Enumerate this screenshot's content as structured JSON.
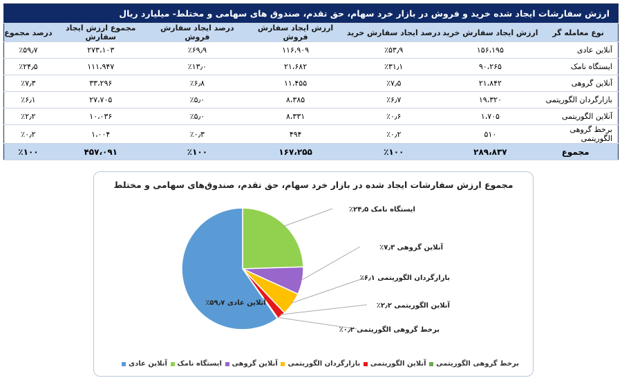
{
  "table": {
    "title": "ارزش سفارشات ایجاد شده خرید و فروش در بازار خرد سهام، حق تقدم، صندوق های سهامی و مختلط- میلیارد ریال",
    "headers": [
      "نوع معامله گر",
      "ارزش ایجاد سفارش خرید",
      "درصد ایجاد سفارش خرید",
      "ارزش ایجاد سفارش فروش",
      "درصد ایجاد سفارش فروش",
      "مجموع ارزش ایجاد سفارش",
      "درصد مجموع"
    ],
    "rows": [
      [
        "آنلاین عادی",
        "۱۵۶،۱۹۵",
        "٪۵۳٫۹",
        "۱۱۶،۹۰۹",
        "٪۶۹٫۹",
        "۲۷۳،۱۰۳",
        "٪۵۹٫۷"
      ],
      [
        "ایستگاه نامک",
        "۹۰،۲۶۵",
        "٪۳۱٫۱",
        "۲۱،۶۸۲",
        "٪۱۳٫۰",
        "۱۱۱،۹۴۷",
        "٪۲۴٫۵"
      ],
      [
        "آنلاین گروهی",
        "۲۱،۸۴۲",
        "٪۷٫۵",
        "۱۱،۴۵۵",
        "٪۶٫۸",
        "۳۳،۲۹۶",
        "٪۷٫۳"
      ],
      [
        "بازارگردان الگوریتمی",
        "۱۹،۳۲۰",
        "٪۶٫۷",
        "۸،۳۸۵",
        "٪۵٫۰",
        "۲۷،۷۰۵",
        "٪۶٫۱"
      ],
      [
        "آنلاین الگوریتمی",
        "۱،۷۰۵",
        "٪۰٫۶",
        "۸،۳۳۱",
        "٪۵٫۰",
        "۱۰،۰۳۶",
        "٪۲٫۲"
      ],
      [
        "برخط گروهی الگوریتمی",
        "۵۱۰",
        "٪۰٫۲",
        "۴۹۴",
        "٪۰٫۳",
        "۱،۰۰۴",
        "٪۰٫۲"
      ]
    ],
    "total": [
      "مجموع",
      "۲۸۹،۸۳۷",
      "٪۱۰۰",
      "۱۶۷،۲۵۵",
      "٪۱۰۰",
      "۴۵۷،۰۹۱",
      "٪۱۰۰"
    ]
  },
  "chart_data": {
    "type": "pie",
    "title": "مجموع ارزش سفارشات ایجاد شده در بازار خرد سهام، حق تقدم، صندوق‌های سهامی و مختلط",
    "slices": [
      {
        "name": "ایستگاه نامک",
        "value": 24.5,
        "label": "ایستگاه نامک ۲۴٫۵٪",
        "color": "#92d050"
      },
      {
        "name": "آنلاین گروهی",
        "value": 7.3,
        "label": "آنلاین گروهی ۷٫۳٪",
        "color": "#9966cc"
      },
      {
        "name": "بازارگردان الگوریتمی",
        "value": 6.1,
        "label": "بازارگردان الگوریتمی ۶٫۱٪",
        "color": "#ffc000"
      },
      {
        "name": "آنلاین الگوریتمی",
        "value": 2.2,
        "label": "آنلاین الگوریتمی ۲٫۲٪",
        "color": "#e31a1c"
      },
      {
        "name": "برخط گروهی الگوریتمی",
        "value": 0.2,
        "label": "برخط گروهی الگوریتمی ۰٫۲٪",
        "color": "#6aa84f"
      },
      {
        "name": "آنلاین عادی",
        "value": 59.7,
        "label": "آنلاین عادی ۵۹٫۷٪",
        "color": "#5b9bd5"
      }
    ],
    "legend": [
      "آنلاین عادی",
      "ایستگاه نامک",
      "آنلاین گروهی",
      "بازارگردان الگوریتمی",
      "آنلاین الگوریتمی",
      "برخط گروهی الگوریتمی"
    ],
    "legend_position": "bottom"
  }
}
